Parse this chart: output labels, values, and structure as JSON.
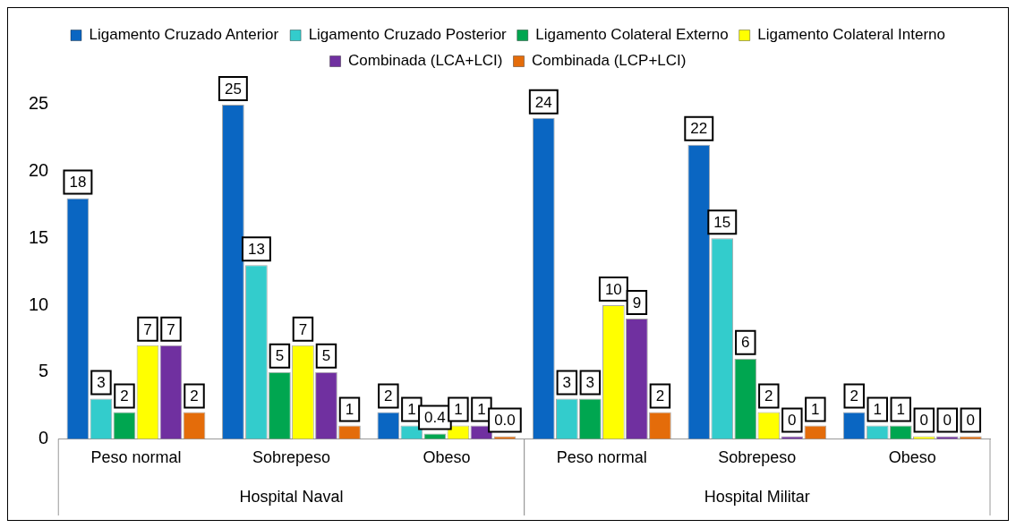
{
  "chart_data": {
    "type": "bar",
    "categories": [
      "Peso normal",
      "Sobrepeso",
      "Obeso",
      "Peso normal",
      "Sobrepeso",
      "Obeso"
    ],
    "annotations": [
      "Hospital Naval",
      "Hospital Militar"
    ],
    "series": [
      {
        "name": "Ligamento Cruzado Anterior",
        "color": "#0a66c2",
        "values": [
          18,
          25,
          2,
          24,
          22,
          2
        ],
        "value_labels": [
          "18",
          "25",
          "2",
          "24",
          "22",
          "2"
        ]
      },
      {
        "name": "Ligamento Cruzado Posterior",
        "color": "#33cccc",
        "values": [
          3,
          13,
          1,
          3,
          15,
          1
        ],
        "value_labels": [
          "3",
          "13",
          "1",
          "3",
          "15",
          "1"
        ]
      },
      {
        "name": "Ligamento Colateral Externo",
        "color": "#00a650",
        "values": [
          2,
          5,
          0.4,
          3,
          6,
          1
        ],
        "value_labels": [
          "2",
          "5",
          "0.4",
          "3",
          "6",
          "1"
        ]
      },
      {
        "name": "Ligamento Colateral Interno",
        "color": "#ffff00",
        "values": [
          7,
          7,
          1,
          10,
          2,
          0
        ],
        "value_labels": [
          "7",
          "7",
          "1",
          "10",
          "2",
          "0"
        ]
      },
      {
        "name": "Combinada (LCA+LCI)",
        "color": "#7030a0",
        "values": [
          7,
          5,
          1,
          9,
          0,
          0
        ],
        "value_labels": [
          "7",
          "5",
          "1",
          "9",
          "0",
          "0"
        ]
      },
      {
        "name": "Combinada (LCP+LCI)",
        "color": "#e46c0a",
        "values": [
          2,
          1,
          0,
          2,
          1,
          0
        ],
        "value_labels": [
          "2",
          "1",
          "0.0",
          "2",
          "1",
          "0"
        ]
      }
    ],
    "ylim": [
      0,
      27
    ],
    "yticks": [
      0,
      5,
      10,
      15,
      20,
      25
    ],
    "grid": false,
    "legend": "top"
  }
}
